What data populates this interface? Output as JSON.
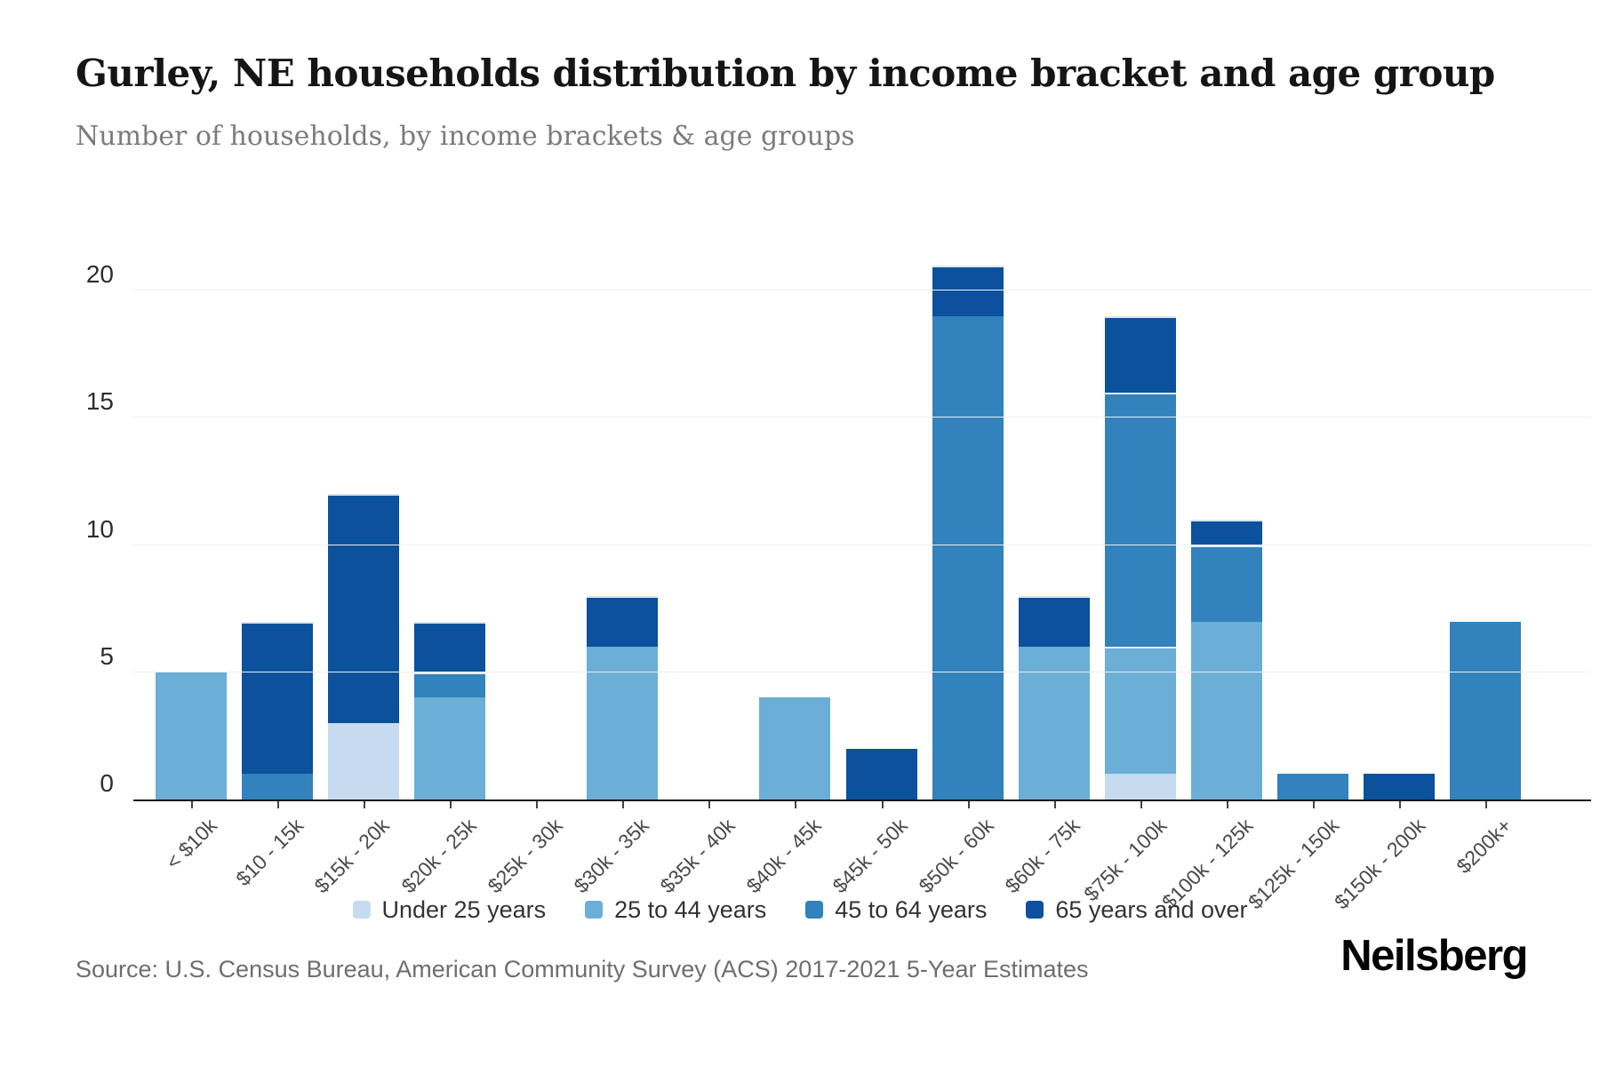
{
  "page": {
    "title": "Gurley, NE households distribution by income bracket and age group",
    "subtitle": "Number of households, by income brackets & age groups",
    "source": "Source: U.S. Census Bureau, American Community Survey (ACS) 2017-2021 5-Year Estimates",
    "brand": "Neilsberg"
  },
  "chart_data": {
    "type": "bar",
    "stacked": true,
    "title": "Gurley, NE households distribution by income bracket and age group",
    "subtitle": "Number of households, by income brackets & age groups",
    "xlabel": "",
    "ylabel": "Number of households",
    "categories": [
      "< $10k",
      "$10 - 15k",
      "$15k - 20k",
      "$20k - 25k",
      "$25k - 30k",
      "$30k - 35k",
      "$35k - 40k",
      "$40k - 45k",
      "$45k - 50k",
      "$50k - 60k",
      "$60k - 75k",
      "$75k - 100k",
      "$100k - 125k",
      "$125k - 150k",
      "$150k - 200k",
      "$200k+"
    ],
    "series": [
      {
        "name": "Under 25 years",
        "color": "#c6dbef",
        "values": [
          0,
          0,
          3,
          0,
          0,
          0,
          0,
          0,
          0,
          0,
          0,
          1,
          0,
          0,
          0,
          0
        ]
      },
      {
        "name": "25 to 44 years",
        "color": "#6baed6",
        "values": [
          5,
          0,
          0,
          4,
          0,
          6,
          0,
          4,
          0,
          0,
          6,
          5,
          7,
          0,
          0,
          0
        ]
      },
      {
        "name": "45 to 64 years",
        "color": "#3182bd",
        "values": [
          0,
          1,
          0,
          1,
          0,
          0,
          0,
          0,
          0,
          19,
          0,
          10,
          3,
          1,
          0,
          7
        ]
      },
      {
        "name": "65 years and over",
        "color": "#0b519c",
        "values": [
          0,
          6,
          9,
          2,
          0,
          2,
          0,
          0,
          2,
          2,
          2,
          3,
          1,
          0,
          1,
          0
        ]
      }
    ],
    "totals": [
      5,
      7,
      12,
      7,
      0,
      8,
      0,
      4,
      2,
      21,
      8,
      19,
      11,
      1,
      1,
      7
    ],
    "ylim": [
      0,
      22
    ],
    "yticks": [
      0,
      5,
      10,
      15,
      20
    ],
    "grid": true,
    "legend_position": "bottom",
    "colors": {
      "axis": "#141414",
      "grid": "#efefef",
      "tick_text": "#2e2e2e",
      "category_text": "#4a4a4a"
    }
  }
}
